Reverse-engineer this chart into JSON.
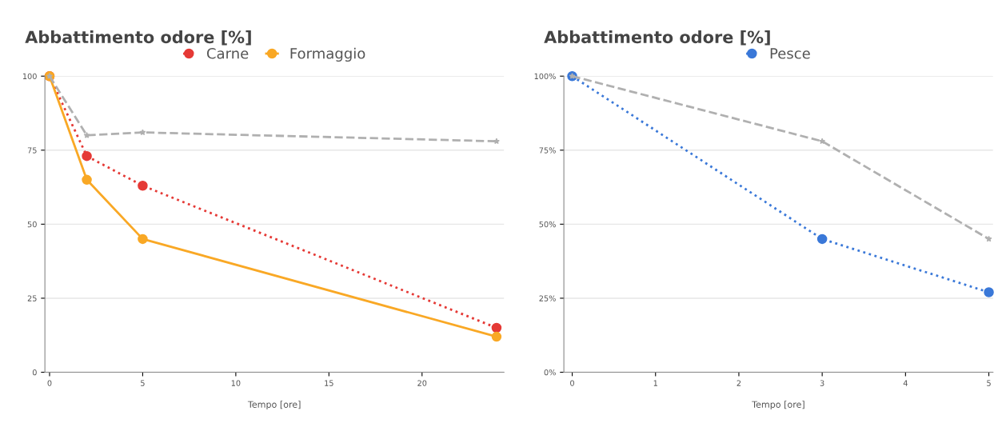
{
  "chart_data": [
    {
      "type": "line",
      "title": "Abbattimento odore [%]",
      "xlabel": "Tempo [ore]",
      "x": [
        0,
        2,
        5,
        24
      ],
      "xlim": [
        -0.25,
        24.4
      ],
      "xticks": [
        0,
        5,
        10,
        15,
        20
      ],
      "ylim": [
        0,
        100
      ],
      "yticks": [
        0,
        25,
        50,
        75,
        100
      ],
      "grid": "y",
      "legend": "top",
      "series": [
        {
          "name": "Carne",
          "color": "#e53935",
          "values": [
            100,
            73,
            63,
            15
          ],
          "line_style": "dotted",
          "marker": "circle"
        },
        {
          "name": "Formaggio",
          "color": "#f9a825",
          "values": [
            100,
            65,
            45,
            12
          ],
          "line_style": "solid",
          "marker": "circle"
        },
        {
          "color": "#b0b0b0",
          "values": [
            100,
            80,
            81,
            78
          ],
          "line_style": "dashed",
          "marker": "star"
        }
      ]
    },
    {
      "type": "line",
      "title": "Abbattimento odore [%]",
      "xlabel": "Tempo [ore]",
      "x": [
        0,
        3,
        5
      ],
      "xlim": [
        -0.1,
        5.05
      ],
      "xticks": [
        0,
        1,
        2,
        3,
        4,
        5
      ],
      "ylim": [
        0,
        100
      ],
      "yticks": [
        {
          "value": 0,
          "label": "0%"
        },
        {
          "value": 25,
          "label": "25%"
        },
        {
          "value": 50,
          "label": "50%"
        },
        {
          "value": 75,
          "label": "75%"
        },
        {
          "value": 100,
          "label": "100%"
        }
      ],
      "grid": "y",
      "legend": "top",
      "series": [
        {
          "name": "Pesce",
          "color": "#3a78d8",
          "values": [
            100,
            45,
            27
          ],
          "line_style": "dotted",
          "marker": "circle"
        },
        {
          "color": "#b0b0b0",
          "values": [
            100,
            78,
            45
          ],
          "line_style": "dashed",
          "marker": "star"
        }
      ]
    }
  ]
}
